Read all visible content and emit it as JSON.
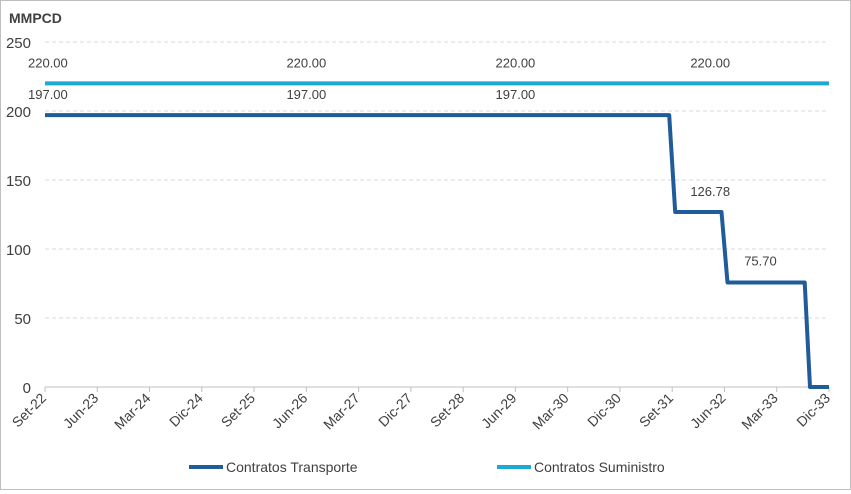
{
  "chart_data": {
    "type": "line",
    "unit_label": "MMPCD",
    "ylim": [
      0,
      250
    ],
    "yticks": [
      0,
      50,
      100,
      150,
      200,
      250
    ],
    "grid": true,
    "legend_position": "bottom",
    "categories": [
      "Set-22",
      "Jun-23",
      "Mar-24",
      "Dic-24",
      "Set-25",
      "Jun-26",
      "Mar-27",
      "Dic-27",
      "Set-28",
      "Jun-29",
      "Mar-30",
      "Dic-30",
      "Set-31",
      "Jun-32",
      "Mar-33",
      "Dic-33"
    ],
    "series": [
      {
        "name": "Contratos Transporte",
        "color": "#1f5c99",
        "points": [
          [
            "Set-22",
            197.0
          ],
          [
            "Set-31",
            197.0
          ],
          [
            "Set-31",
            126.78
          ],
          [
            "Jun-32",
            126.78
          ],
          [
            "Jun-32",
            75.7
          ],
          [
            "Mar-33",
            75.7
          ],
          [
            "Dic-33",
            0
          ],
          [
            "Dic-33",
            0
          ]
        ],
        "labels": [
          {
            "at": "Set-22",
            "text": "197.00",
            "value": 197.0
          },
          {
            "at": "Jun-26",
            "text": "197.00",
            "value": 197.0
          },
          {
            "at": "Jun-29",
            "text": "197.00",
            "value": 197.0
          },
          {
            "at": "Set-31",
            "text": "126.78",
            "value": 126.78
          },
          {
            "at": "Jun-32",
            "text": "75.70",
            "value": 75.7
          }
        ]
      },
      {
        "name": "Contratos Suministro",
        "color": "#1ba9d6",
        "points": [
          [
            "Set-22",
            220.0
          ],
          [
            "Dic-33",
            220.0
          ]
        ],
        "labels": [
          {
            "at": "Set-22",
            "text": "220.00",
            "value": 220.0
          },
          {
            "at": "Jun-26",
            "text": "220.00",
            "value": 220.0
          },
          {
            "at": "Jun-29",
            "text": "220.00",
            "value": 220.0
          },
          {
            "at": "Set-31",
            "text": "220.00",
            "value": 220.0
          }
        ]
      }
    ]
  }
}
